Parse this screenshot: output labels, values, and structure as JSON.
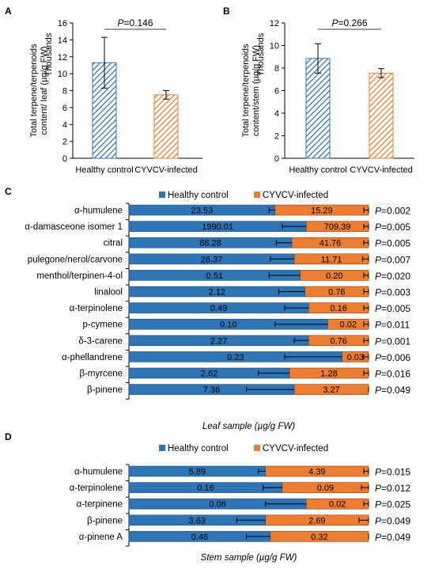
{
  "chart_data": [
    {
      "panel": "A",
      "type": "bar",
      "ylabel": "Total terpene/terpenoids content/ leaf (µg/g FW)",
      "ylabel_line1": "Total terpene/terpenoids",
      "ylabel_line2": "content/ leaf (µg/g FW)",
      "unit_label": "Thousands",
      "categories": [
        "Healthy control",
        "CYVCV-infected"
      ],
      "values": [
        11.3,
        7.5
      ],
      "errors": [
        3.0,
        0.5
      ],
      "ylim": [
        0,
        16
      ],
      "yticks": [
        0,
        2,
        4,
        6,
        8,
        10,
        12,
        14,
        16
      ],
      "p_label": "P=0.146",
      "p_italic": "P",
      "p_value": "=0.146",
      "colors": [
        "#2e75b6",
        "#ed7d31"
      ]
    },
    {
      "panel": "B",
      "type": "bar",
      "ylabel": "Total terpene/terpenoids content/stem (µg/g FW)",
      "ylabel_line1": "Total terpene/terpenoids",
      "ylabel_line2": "content/stem (µg/g FW)",
      "unit_label": "Thousands",
      "categories": [
        "Healthy control",
        "CYVCV-infected"
      ],
      "values": [
        8.85,
        7.55
      ],
      "errors": [
        1.3,
        0.4
      ],
      "ylim": [
        0,
        12
      ],
      "yticks": [
        0,
        2,
        4,
        6,
        8,
        10,
        12
      ],
      "p_label": "P=0.266",
      "p_italic": "P",
      "p_value": "=0.266",
      "colors": [
        "#2e75b6",
        "#ed7d31"
      ]
    },
    {
      "panel": "C",
      "type": "bar",
      "orientation": "horizontal-stacked-100",
      "xlabel": "Leaf sample (µg/g FW)",
      "legend": [
        "Healthy control",
        "CYVCV-infected"
      ],
      "legend_position": "top",
      "colors": [
        "#2e75b6",
        "#ed7d31"
      ],
      "rows": [
        {
          "name": "α-humulene",
          "healthy": "23.53",
          "infected": "15.29",
          "p": "=0.002",
          "hf": 0.61,
          "he": 0.025,
          "ie": 0.02
        },
        {
          "name": "α-damasceone isomer 1",
          "healthy": "1990.01",
          "infected": "709.39",
          "p": "=0.005",
          "hf": 0.74,
          "he": 0.1,
          "ie": 0.02
        },
        {
          "name": "citral",
          "healthy": "88.28",
          "infected": "41.76",
          "p": "=0.005",
          "hf": 0.68,
          "he": 0.065,
          "ie": 0.02
        },
        {
          "name": "pulegone/nerol/carvone",
          "healthy": "26.37",
          "infected": "11.71",
          "p": "=0.007",
          "hf": 0.69,
          "he": 0.1,
          "ie": 0.025
        },
        {
          "name": "menthol/terpinen-4-ol",
          "healthy": "0.51",
          "infected": "0.20",
          "p": "=0.020",
          "hf": 0.715,
          "he": 0.13,
          "ie": 0.02
        },
        {
          "name": "linalool",
          "healthy": "2.12",
          "infected": "0.76",
          "p": "=0.003",
          "hf": 0.735,
          "he": 0.11,
          "ie": 0.02
        },
        {
          "name": "α-terpinolene",
          "healthy": "0.49",
          "infected": "0.16",
          "p": "=0.005",
          "hf": 0.75,
          "he": 0.1,
          "ie": 0.02
        },
        {
          "name": "p-cymene",
          "healthy": "0.10",
          "infected": "0.02",
          "p": "=0.011",
          "hf": 0.83,
          "he": 0.22,
          "ie": 0.02
        },
        {
          "name": "δ-3-carene",
          "healthy": "2.27",
          "infected": "0.76",
          "p": "=0.001",
          "hf": 0.75,
          "he": 0.06,
          "ie": 0.02
        },
        {
          "name": "α-phellandrene",
          "healthy": "0.23",
          "infected": "0.03",
          "p": "=0.006",
          "hf": 0.89,
          "he": 0.24,
          "ie": 0.02
        },
        {
          "name": "β-myrcene",
          "healthy": "2.62",
          "infected": "1.28",
          "p": "=0.016",
          "hf": 0.67,
          "he": 0.13,
          "ie": 0.02
        },
        {
          "name": "β-pinene",
          "healthy": "7.36",
          "infected": "3.27",
          "p": "=0.049",
          "hf": 0.69,
          "he": 0.2,
          "ie": 0.0
        }
      ]
    },
    {
      "panel": "D",
      "type": "bar",
      "orientation": "horizontal-stacked-100",
      "xlabel": "Stem sample (µg/g FW)",
      "legend": [
        "Healthy control",
        "CYVCV-infected"
      ],
      "legend_position": "top",
      "colors": [
        "#2e75b6",
        "#ed7d31"
      ],
      "rows": [
        {
          "name": "α-humulene",
          "healthy": "5.89",
          "infected": "4.39",
          "p": "=0.015",
          "hf": 0.57,
          "he": 0.03,
          "ie": 0.02
        },
        {
          "name": "α-terpinolene",
          "healthy": "0.16",
          "infected": "0.09",
          "p": "=0.012",
          "hf": 0.64,
          "he": 0.08,
          "ie": 0.03
        },
        {
          "name": "α-terpinene",
          "healthy": "0.06",
          "infected": "0.02",
          "p": "=0.025",
          "hf": 0.74,
          "he": 0.17,
          "ie": 0.02
        },
        {
          "name": "β-pinene",
          "healthy": "3.63",
          "infected": "2.69",
          "p": "=0.049",
          "hf": 0.57,
          "he": 0.12,
          "ie": 0.04
        },
        {
          "name": "α-pinene A",
          "healthy": "0.46",
          "infected": "0.32",
          "p": "=0.049",
          "hf": 0.59,
          "he": 0.1,
          "ie": 0.0
        }
      ]
    }
  ],
  "panels": {
    "a": "A",
    "b": "B",
    "c": "C",
    "d": "D"
  },
  "p_italic": "P"
}
